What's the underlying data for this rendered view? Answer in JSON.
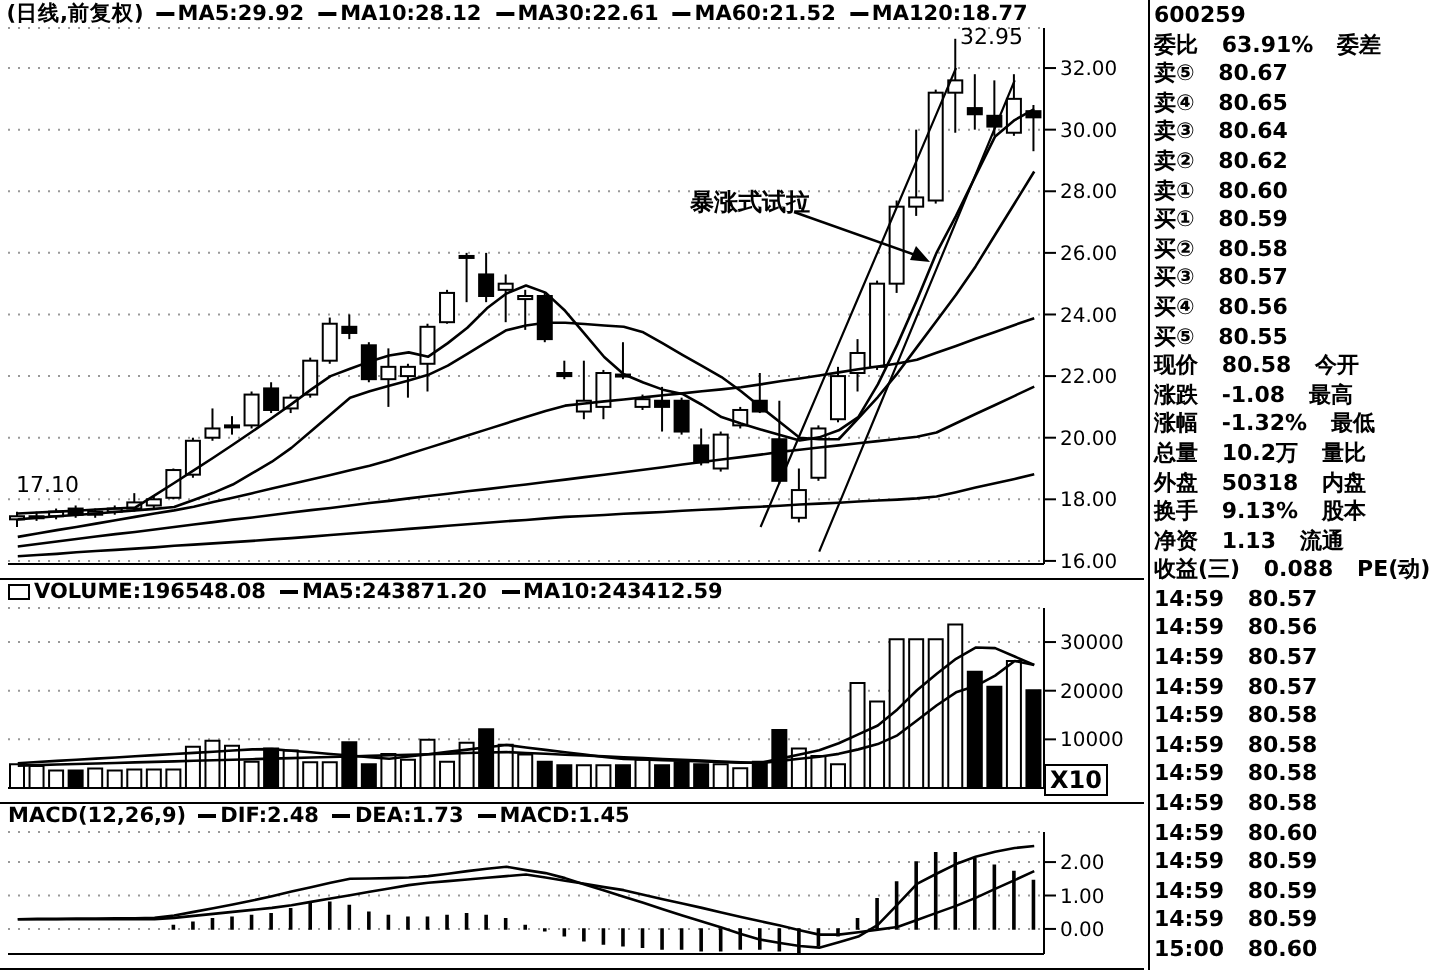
{
  "chart_data": [
    {
      "type": "candlestick",
      "title": "(日线,前复权)",
      "color": "#000000",
      "grid": "y",
      "tick_labels": "y",
      "legend": "top",
      "categories": [
        null,
        null,
        null,
        null,
        null,
        null,
        null,
        null,
        null,
        null,
        null,
        null,
        null,
        null,
        null,
        null,
        null,
        null,
        null,
        null,
        null,
        null,
        null,
        null,
        null,
        null,
        null,
        null,
        null,
        null,
        null,
        null,
        null,
        null,
        null,
        null,
        null,
        null,
        null,
        null,
        null,
        null,
        null,
        null,
        null,
        null,
        null,
        null,
        null,
        null,
        null,
        null,
        null
      ],
      "ohlc": [
        [
          17.35,
          17.6,
          17.1,
          17.45
        ],
        [
          17.45,
          17.6,
          17.3,
          17.45
        ],
        [
          17.45,
          17.7,
          17.35,
          17.6
        ],
        [
          17.7,
          17.8,
          17.4,
          17.5
        ],
        [
          17.5,
          17.7,
          17.4,
          17.6
        ],
        [
          17.6,
          17.8,
          17.5,
          17.7
        ],
        [
          17.7,
          18.2,
          17.6,
          17.9
        ],
        [
          17.8,
          18.1,
          17.7,
          18.0
        ],
        [
          18.05,
          19.0,
          18.0,
          18.95
        ],
        [
          18.8,
          20.0,
          18.7,
          19.9
        ],
        [
          20.0,
          20.95,
          19.9,
          20.3
        ],
        [
          20.35,
          20.7,
          20.1,
          20.4
        ],
        [
          20.4,
          21.5,
          20.3,
          21.4
        ],
        [
          21.6,
          21.8,
          20.8,
          20.9
        ],
        [
          20.95,
          21.4,
          20.8,
          21.3
        ],
        [
          21.4,
          22.6,
          21.3,
          22.5
        ],
        [
          22.5,
          23.9,
          22.4,
          23.7
        ],
        [
          23.6,
          24.0,
          23.2,
          23.4
        ],
        [
          23.0,
          23.1,
          21.8,
          21.9
        ],
        [
          21.9,
          22.9,
          21.0,
          22.3
        ],
        [
          22.0,
          22.4,
          21.3,
          22.3
        ],
        [
          22.4,
          23.7,
          21.5,
          23.6
        ],
        [
          23.75,
          24.8,
          23.7,
          24.7
        ],
        [
          25.85,
          26.0,
          24.4,
          25.9
        ],
        [
          25.3,
          26.0,
          24.4,
          24.6
        ],
        [
          24.8,
          25.3,
          23.75,
          25.0
        ],
        [
          24.5,
          24.8,
          23.5,
          24.6
        ],
        [
          24.6,
          24.7,
          23.1,
          23.2
        ],
        [
          22.1,
          22.5,
          21.9,
          22.0
        ],
        [
          20.85,
          22.5,
          20.6,
          21.2
        ],
        [
          21.0,
          22.2,
          20.6,
          22.1
        ],
        [
          22.05,
          23.1,
          21.9,
          22.0
        ],
        [
          21.0,
          21.4,
          20.9,
          21.25
        ],
        [
          21.2,
          21.65,
          20.2,
          21.0
        ],
        [
          21.2,
          21.3,
          20.1,
          20.2
        ],
        [
          19.75,
          20.3,
          19.1,
          19.2
        ],
        [
          19.0,
          20.2,
          18.9,
          20.1
        ],
        [
          20.4,
          21.0,
          20.3,
          20.9
        ],
        [
          21.2,
          22.1,
          20.8,
          20.85
        ],
        [
          19.95,
          21.2,
          18.5,
          18.6
        ],
        [
          17.4,
          19.0,
          17.25,
          18.3
        ],
        [
          18.7,
          20.4,
          18.6,
          20.3
        ],
        [
          20.6,
          22.3,
          20.5,
          22.0
        ],
        [
          22.1,
          23.2,
          21.5,
          22.75
        ],
        [
          22.3,
          25.1,
          22.2,
          25.0
        ],
        [
          25.0,
          27.7,
          24.7,
          27.5
        ],
        [
          27.5,
          30.0,
          27.2,
          27.8
        ],
        [
          27.7,
          31.3,
          27.6,
          31.2
        ],
        [
          31.2,
          32.95,
          29.9,
          31.6
        ],
        [
          30.7,
          31.8,
          30.0,
          30.5
        ],
        [
          30.45,
          31.6,
          29.8,
          30.1
        ],
        [
          29.9,
          31.8,
          29.8,
          31.0
        ],
        [
          30.6,
          30.8,
          29.3,
          30.4
        ]
      ],
      "series": [
        {
          "type": "line",
          "name": "MA5:29.92",
          "color": "#000000",
          "values": [
            17.54,
            17.57,
            17.6,
            17.63,
            17.67,
            17.7,
            17.73,
            18.13,
            18.53,
            18.94,
            19.35,
            19.77,
            20.2,
            20.64,
            21.09,
            21.56,
            22.0,
            22.24,
            22.47,
            22.67,
            22.77,
            22.63,
            23.07,
            23.57,
            24.2,
            24.68,
            24.94,
            24.71,
            24.12,
            23.37,
            22.62,
            22.06,
            21.79,
            21.56,
            21.42,
            21.07,
            20.67,
            20.46,
            20.27,
            20.09,
            19.91,
            20.01,
            20.24,
            20.67,
            21.73,
            23.03,
            24.47,
            26.0,
            27.2,
            28.5,
            29.78,
            30.31,
            30.67
          ]
        },
        {
          "type": "line",
          "name": "MA10:28.12",
          "color": "#000000",
          "values": [
            17.35,
            17.4,
            17.45,
            17.49,
            17.54,
            17.59,
            17.64,
            17.69,
            17.75,
            17.98,
            18.21,
            18.48,
            18.85,
            19.22,
            19.67,
            20.21,
            20.75,
            21.3,
            21.51,
            21.69,
            21.86,
            22.04,
            22.34,
            22.72,
            23.11,
            23.49,
            23.64,
            23.73,
            23.73,
            23.69,
            23.64,
            23.6,
            23.42,
            23.06,
            22.69,
            22.33,
            21.97,
            21.51,
            21.0,
            20.5,
            20.0,
            19.95,
            19.95,
            20.63,
            21.32,
            22.09,
            22.94,
            23.79,
            24.64,
            25.56,
            26.59,
            27.61,
            28.64
          ]
        },
        {
          "type": "line",
          "name": "MA30:22.61",
          "color": "#000000",
          "values": [
            16.78,
            16.89,
            17.0,
            17.1,
            17.21,
            17.32,
            17.43,
            17.54,
            17.64,
            17.76,
            17.91,
            18.05,
            18.2,
            18.35,
            18.5,
            18.64,
            18.79,
            18.94,
            19.09,
            19.27,
            19.47,
            19.67,
            19.87,
            20.07,
            20.27,
            20.47,
            20.67,
            20.87,
            21.04,
            21.11,
            21.18,
            21.24,
            21.31,
            21.38,
            21.44,
            21.51,
            21.57,
            21.64,
            21.73,
            21.83,
            21.92,
            22.02,
            22.12,
            22.22,
            22.31,
            22.41,
            22.53,
            22.76,
            22.98,
            23.21,
            23.43,
            23.66,
            23.88
          ]
        },
        {
          "type": "line",
          "name": "MA60:21.52",
          "color": "#000000",
          "values": [
            16.47,
            16.55,
            16.63,
            16.71,
            16.79,
            16.87,
            16.94,
            17.02,
            17.1,
            17.18,
            17.26,
            17.34,
            17.41,
            17.49,
            17.57,
            17.65,
            17.72,
            17.8,
            17.88,
            17.95,
            18.03,
            18.11,
            18.18,
            18.26,
            18.33,
            18.41,
            18.48,
            18.56,
            18.64,
            18.72,
            18.8,
            18.88,
            18.96,
            19.04,
            19.13,
            19.21,
            19.29,
            19.37,
            19.45,
            19.54,
            19.61,
            19.68,
            19.75,
            19.82,
            19.89,
            19.96,
            20.03,
            20.17,
            20.47,
            20.77,
            21.06,
            21.36,
            21.66
          ]
        },
        {
          "type": "line",
          "name": "MA120:18.77",
          "color": "#000000",
          "values": [
            16.15,
            16.19,
            16.23,
            16.28,
            16.32,
            16.36,
            16.4,
            16.44,
            16.49,
            16.53,
            16.57,
            16.61,
            16.65,
            16.7,
            16.74,
            16.79,
            16.84,
            16.89,
            16.94,
            16.99,
            17.04,
            17.09,
            17.14,
            17.19,
            17.24,
            17.29,
            17.33,
            17.38,
            17.43,
            17.46,
            17.49,
            17.53,
            17.56,
            17.59,
            17.63,
            17.66,
            17.69,
            17.73,
            17.76,
            17.79,
            17.83,
            17.86,
            17.89,
            17.93,
            17.96,
            17.99,
            18.03,
            18.09,
            18.23,
            18.38,
            18.52,
            18.66,
            18.81
          ]
        },
        {
          "type": "line",
          "color": "#000000",
          "values": [
            null,
            null,
            null,
            null,
            null,
            null,
            null,
            null,
            null,
            null,
            null,
            null,
            null,
            null,
            null,
            null,
            null,
            null,
            null,
            null,
            null,
            null,
            null,
            null,
            null,
            null,
            null,
            null,
            null,
            null,
            null,
            null,
            null,
            null,
            null,
            null,
            null,
            null,
            17.1,
            18.59,
            20.08,
            21.57,
            23.06,
            24.55,
            26.04,
            27.53,
            29.02,
            30.51,
            32.0,
            null,
            null,
            null,
            null
          ]
        },
        {
          "type": "line",
          "color": "#000000",
          "values": [
            null,
            null,
            null,
            null,
            null,
            null,
            null,
            null,
            null,
            null,
            null,
            null,
            null,
            null,
            null,
            null,
            null,
            null,
            null,
            null,
            null,
            null,
            null,
            null,
            null,
            null,
            null,
            null,
            null,
            null,
            null,
            null,
            null,
            null,
            null,
            null,
            null,
            null,
            null,
            null,
            null,
            16.3,
            17.83,
            19.36,
            20.89,
            22.42,
            23.95,
            25.48,
            27.01,
            28.54,
            30.07,
            31.6,
            null
          ]
        }
      ],
      "ylim": [
        15.9,
        33.3
      ],
      "yticks": [
        {
          "value": 16,
          "label": "16.00"
        },
        {
          "value": 18,
          "label": "18.00"
        },
        {
          "value": 20,
          "label": "20.00"
        },
        {
          "value": 22,
          "label": "22.00"
        },
        {
          "value": 24,
          "label": "24.00"
        },
        {
          "value": 26,
          "label": "26.00"
        },
        {
          "value": 28,
          "label": "28.00"
        },
        {
          "value": 30,
          "label": "30.00"
        },
        {
          "value": 32,
          "label": "32.00"
        }
      ],
      "annotations": [
        "32.95",
        "17.10",
        "暴涨式试拉"
      ]
    },
    {
      "type": "bar",
      "grid": "y",
      "tick_labels": "y",
      "legend": "top left",
      "categories": [
        null,
        null,
        null,
        null,
        null,
        null,
        null,
        null,
        null,
        null,
        null,
        null,
        null,
        null,
        null,
        null,
        null,
        null,
        null,
        null,
        null,
        null,
        null,
        null,
        null,
        null,
        null,
        null,
        null,
        null,
        null,
        null,
        null,
        null,
        null,
        null,
        null,
        null,
        null,
        null,
        null,
        null,
        null,
        null,
        null,
        null,
        null,
        null,
        null,
        null,
        null,
        null,
        null
      ],
      "series": [
        {
          "type": "bar",
          "name": "VOLUME:196548.08",
          "colors": [
            "#ffffff",
            "#ffffff",
            "#ffffff",
            "#000000",
            "#ffffff",
            "#ffffff",
            "#ffffff",
            "#ffffff",
            "#ffffff",
            "#ffffff",
            "#ffffff",
            "#ffffff",
            "#ffffff",
            "#000000",
            "#ffffff",
            "#ffffff",
            "#ffffff",
            "#000000",
            "#000000",
            "#ffffff",
            "#ffffff",
            "#ffffff",
            "#ffffff",
            "#ffffff",
            "#000000",
            "#ffffff",
            "#ffffff",
            "#000000",
            "#000000",
            "#ffffff",
            "#ffffff",
            "#000000",
            "#ffffff",
            "#000000",
            "#000000",
            "#000000",
            "#ffffff",
            "#ffffff",
            "#000000",
            "#000000",
            "#ffffff",
            "#ffffff",
            "#ffffff",
            "#ffffff",
            "#ffffff",
            "#ffffff",
            "#ffffff",
            "#ffffff",
            "#ffffff",
            "#000000",
            "#000000",
            "#ffffff",
            "#000000"
          ],
          "values": [
            4900,
            4500,
            3600,
            3600,
            4000,
            3600,
            3800,
            3800,
            3800,
            8500,
            9700,
            8700,
            5400,
            8100,
            7700,
            5300,
            5300,
            9400,
            4900,
            7000,
            5800,
            9900,
            5400,
            9300,
            12100,
            8900,
            6900,
            5400,
            4700,
            4700,
            4700,
            4700,
            5800,
            4700,
            5300,
            4900,
            4900,
            4050,
            5400,
            11900,
            8100,
            6600,
            4900,
            21600,
            17800,
            30600,
            30600,
            30600,
            33600,
            23900,
            20800,
            26100,
            20100
          ]
        },
        {
          "type": "line",
          "name": "MA5:243871.20",
          "color": "#000000",
          "values": [
            5100,
            5340,
            5570,
            5810,
            6040,
            6280,
            6520,
            6750,
            6990,
            7230,
            7460,
            7700,
            7930,
            8000,
            7670,
            7340,
            7000,
            6670,
            6330,
            6000,
            6470,
            6940,
            7420,
            7890,
            8360,
            8850,
            8320,
            7840,
            7350,
            6870,
            6380,
            5980,
            5850,
            5720,
            5590,
            5470,
            5340,
            5210,
            5180,
            6040,
            6900,
            7760,
            9200,
            11030,
            12850,
            16160,
            20100,
            23430,
            26560,
            28880,
            28760,
            27030,
            25300
          ]
        },
        {
          "type": "line",
          "name": "MA10:243412.59",
          "color": "#000000",
          "values": [
            4600,
            4710,
            4820,
            4930,
            5040,
            5150,
            5260,
            5370,
            5480,
            5590,
            5700,
            5810,
            5920,
            6030,
            6150,
            6260,
            6380,
            6490,
            6610,
            6720,
            6840,
            6950,
            7070,
            7180,
            7300,
            7380,
            7190,
            7030,
            6850,
            6680,
            6500,
            6320,
            6150,
            5970,
            5790,
            5620,
            5440,
            5260,
            5140,
            5570,
            6000,
            6430,
            7020,
            7940,
            9020,
            10830,
            13890,
            16950,
            19660,
            20950,
            23100,
            26100,
            25300
          ]
        }
      ],
      "ylim": [
        0,
        37000
      ],
      "yticks": [
        10000,
        20000,
        30000
      ],
      "annotations": [
        "X10"
      ]
    },
    {
      "type": "bar",
      "title": "MACD(12,26,9)",
      "grid": "y",
      "tick_labels": "y",
      "legend": "top left",
      "categories": [
        null,
        null,
        null,
        null,
        null,
        null,
        null,
        null,
        null,
        null,
        null,
        null,
        null,
        null,
        null,
        null,
        null,
        null,
        null,
        null,
        null,
        null,
        null,
        null,
        null,
        null,
        null,
        null,
        null,
        null,
        null,
        null,
        null,
        null,
        null,
        null,
        null,
        null,
        null,
        null,
        null,
        null,
        null,
        null,
        null,
        null,
        null,
        null,
        null,
        null,
        null,
        null,
        null
      ],
      "series": [
        {
          "type": "line",
          "name": "DIF:2.48",
          "color": "#000000",
          "values": [
            0.29,
            0.3,
            0.3,
            0.31,
            0.31,
            0.32,
            0.32,
            0.33,
            0.4,
            0.51,
            0.62,
            0.73,
            0.85,
            0.98,
            1.12,
            1.25,
            1.38,
            1.5,
            1.51,
            1.52,
            1.54,
            1.58,
            1.65,
            1.73,
            1.8,
            1.86,
            1.76,
            1.67,
            1.52,
            1.33,
            1.15,
            0.96,
            0.78,
            0.59,
            0.4,
            0.22,
            0.04,
            -0.15,
            -0.32,
            -0.42,
            -0.51,
            -0.56,
            -0.4,
            -0.23,
            0.12,
            0.73,
            1.35,
            1.65,
            1.94,
            2.16,
            2.31,
            2.42,
            2.48
          ]
        },
        {
          "type": "line",
          "name": "DEA:1.73",
          "color": "#000000",
          "values": [
            0.29,
            0.29,
            0.29,
            0.29,
            0.29,
            0.29,
            0.29,
            0.29,
            0.33,
            0.39,
            0.45,
            0.51,
            0.57,
            0.63,
            0.71,
            0.81,
            0.91,
            1.01,
            1.11,
            1.21,
            1.31,
            1.38,
            1.43,
            1.48,
            1.53,
            1.58,
            1.63,
            1.54,
            1.44,
            1.35,
            1.25,
            1.16,
            1.02,
            0.89,
            0.76,
            0.63,
            0.49,
            0.36,
            0.23,
            0.1,
            -0.04,
            -0.17,
            -0.17,
            -0.1,
            -0.02,
            0.06,
            0.27,
            0.48,
            0.69,
            0.93,
            1.2,
            1.46,
            1.73
          ]
        },
        {
          "type": "bar",
          "name": "MACD:1.45",
          "color": "#000000",
          "values": [
            0,
            0,
            0,
            0,
            0,
            0,
            0,
            0,
            0.1,
            0.2,
            0.3,
            0.35,
            0.4,
            0.45,
            0.6,
            0.75,
            0.8,
            0.7,
            0.5,
            0.4,
            0.35,
            0.35,
            0.4,
            0.45,
            0.4,
            0.3,
            0.1,
            -0.05,
            -0.2,
            -0.35,
            -0.45,
            -0.5,
            -0.55,
            -0.6,
            -0.6,
            -0.65,
            -0.65,
            -0.6,
            -0.6,
            -0.65,
            -0.7,
            -0.5,
            -0.2,
            0.3,
            0.9,
            1.4,
            2.0,
            2.28,
            2.28,
            2.1,
            1.9,
            1.72,
            1.45
          ]
        }
      ],
      "ylim": [
        -0.75,
        2.9
      ],
      "yticks": [
        {
          "value": 0,
          "label": "0.00"
        },
        {
          "value": 1,
          "label": "1.00"
        },
        {
          "value": 2,
          "label": "2.00"
        }
      ]
    },
    {
      "type": "other",
      "annotations": [
        "600259",
        "委比 63.91% 委差",
        "卖⑤ 80.67",
        "卖④ 80.65",
        "卖③ 80.64",
        "卖② 80.62",
        "卖① 80.60",
        "买① 80.59",
        "买② 80.58",
        "买③ 80.57",
        "买④ 80.56",
        "买⑤ 80.55",
        "现价 80.58 今开",
        "涨跌 -1.08 最高",
        "涨幅 -1.32% 最低",
        "总量 10.2万 量比",
        "外盘 50318 内盘",
        "换手 9.13% 股本",
        "净资 1.13 流通",
        "收益(三) 0.088 PE(动)",
        "14:59 80.57",
        "14:59 80.56",
        "14:59 80.57",
        "14:59 80.57",
        "14:59 80.58",
        "14:59 80.58",
        "14:59 80.58",
        "14:59 80.58",
        "14:59 80.60",
        "14:59 80.59",
        "14:59 80.59",
        "14:59 80.59",
        "15:00 80.60"
      ]
    }
  ]
}
